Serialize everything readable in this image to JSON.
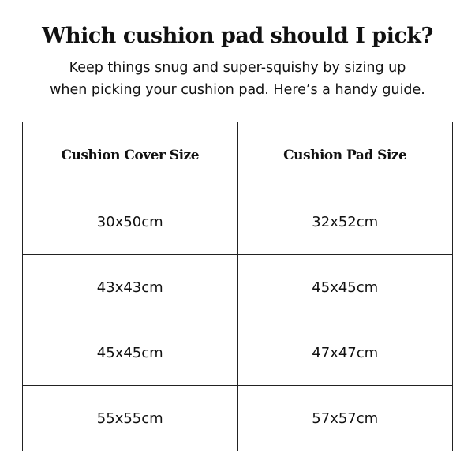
{
  "title": "Which cushion pad should I pick?",
  "subtitle_line1": "Keep things snug and super-squishy by sizing up",
  "subtitle_line2": "when picking your cushion pad. Here’s a handy guide.",
  "table": {
    "headers": [
      "Cushion Cover Size",
      "Cushion Pad Size"
    ],
    "rows": [
      [
        "30x50cm",
        "32x52cm"
      ],
      [
        "43x43cm",
        "45x45cm"
      ],
      [
        "45x45cm",
        "47x47cm"
      ],
      [
        "55x55cm",
        "57x57cm"
      ]
    ]
  }
}
